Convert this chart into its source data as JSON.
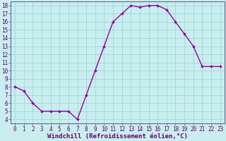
{
  "x": [
    0,
    1,
    2,
    3,
    4,
    5,
    6,
    7,
    8,
    9,
    10,
    11,
    12,
    13,
    14,
    15,
    16,
    17,
    18,
    19,
    20,
    21,
    22,
    23
  ],
  "y": [
    8.0,
    7.5,
    6.0,
    5.0,
    5.0,
    5.0,
    5.0,
    4.0,
    7.0,
    10.0,
    13.0,
    16.0,
    17.0,
    18.0,
    17.8,
    18.0,
    18.0,
    17.5,
    16.0,
    14.5,
    13.0,
    10.5,
    10.5,
    10.5
  ],
  "line_color": "#990099",
  "marker": "D",
  "marker_size": 2.0,
  "bg_color": "#c8eef0",
  "grid_color": "#a0d8d8",
  "xlabel": "Windchill (Refroidissement éolien,°C)",
  "xlabel_fontsize": 6.5,
  "tick_fontsize": 5.5,
  "xlim": [
    -0.5,
    23.5
  ],
  "ylim": [
    3.5,
    18.5
  ],
  "yticks": [
    4,
    5,
    6,
    7,
    8,
    9,
    10,
    11,
    12,
    13,
    14,
    15,
    16,
    17,
    18
  ],
  "xticks": [
    0,
    1,
    2,
    3,
    4,
    5,
    6,
    7,
    8,
    9,
    10,
    11,
    12,
    13,
    14,
    15,
    16,
    17,
    18,
    19,
    20,
    21,
    22,
    23
  ],
  "spine_color": "#666688",
  "text_color": "#660066",
  "line_width": 1.0
}
